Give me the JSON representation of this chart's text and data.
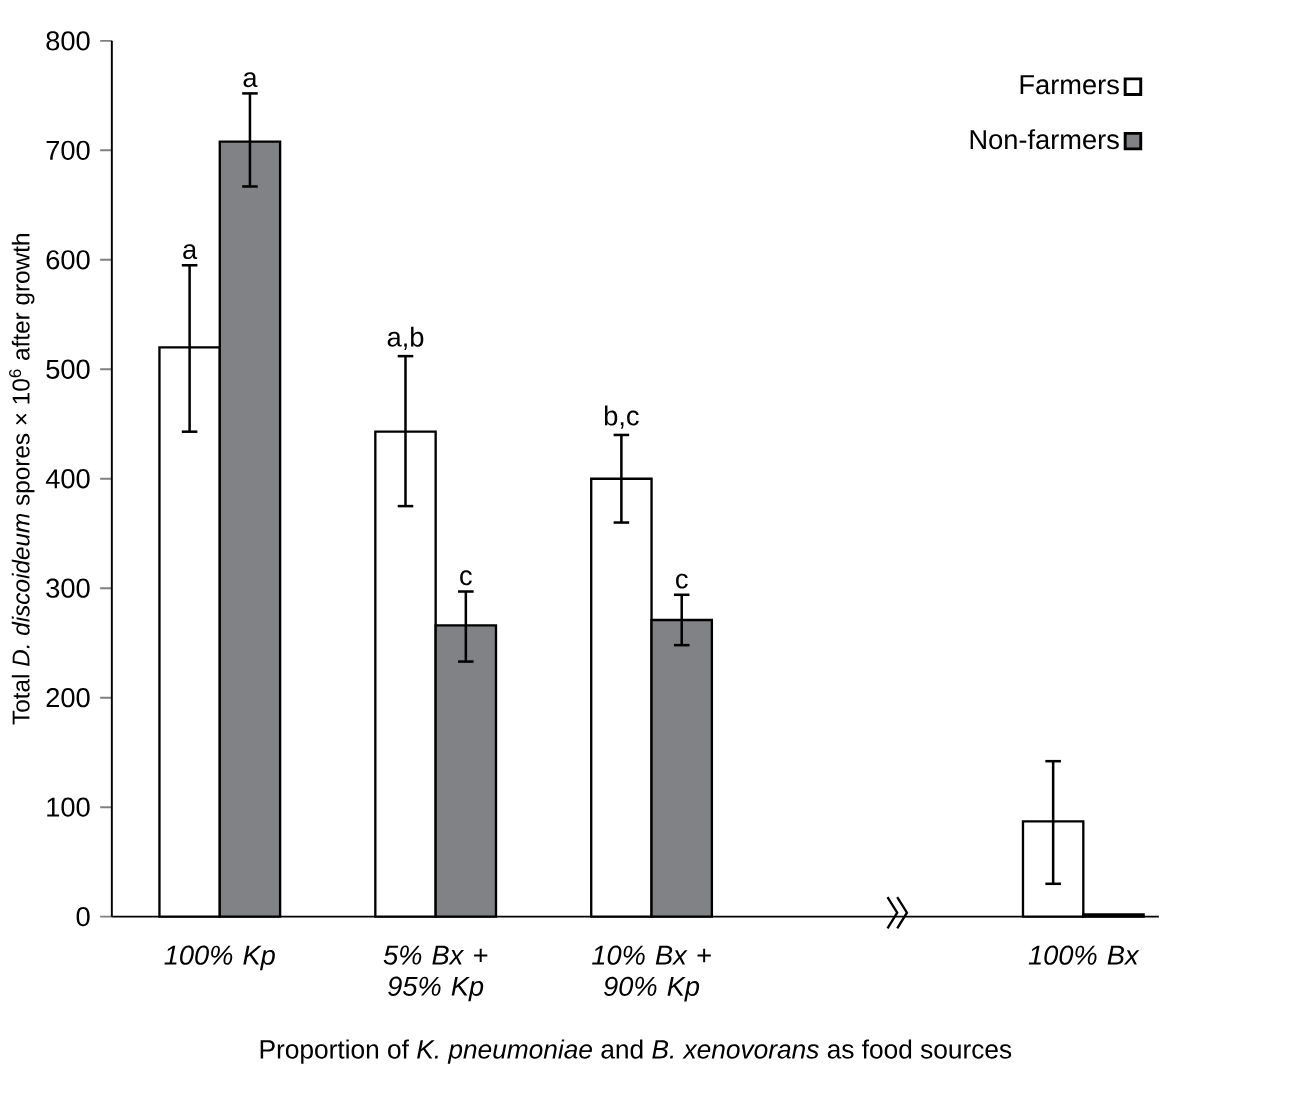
{
  "chart_data": {
    "type": "bar",
    "xlabel": "Proportion of *K. pneumoniae* and *B. xenovorans* as food sources",
    "ylabel": "Total *D. discoideum* spores × 10$^{6}$ after growth",
    "categories": [
      "100% Kp",
      "5% Bx + 95% Kp",
      "10% Bx + 90% Kp",
      null,
      "100% Bx"
    ],
    "series": [
      {
        "name": "Farmers",
        "color": "#ffffff",
        "values": [
          520,
          443,
          400,
          null,
          87
        ],
        "errors": [
          [
            443,
            595
          ],
          [
            375,
            512
          ],
          [
            360,
            440
          ],
          null,
          [
            30,
            142
          ]
        ]
      },
      {
        "name": "Non-farmers",
        "color": "#808285",
        "values": [
          708,
          266,
          271,
          null,
          2
        ],
        "errors": [
          [
            667,
            752
          ],
          [
            233,
            297
          ],
          [
            248,
            294
          ],
          null,
          null
        ]
      }
    ],
    "ylim": [
      0,
      800
    ],
    "yticks": [
      0,
      100,
      200,
      300,
      400,
      500,
      600,
      700,
      800
    ],
    "grid": false,
    "legend": "top right",
    "annotations": [
      "a",
      "a",
      "a,b",
      "c",
      "b,c",
      "c"
    ]
  }
}
